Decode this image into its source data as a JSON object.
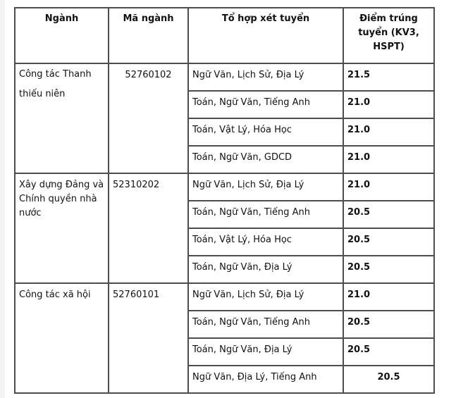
{
  "headers": [
    "Ngành",
    "Mã ngành",
    "Tổ hợp xét tuyển",
    "Điểm trúng tuyển (KV3, HSPT)"
  ],
  "groups": [
    {
      "name": "Công tác Thanh thiếu niên",
      "code": "52760102",
      "rows": [
        {
          "combo": "Ngữ Văn, Lịch Sử, Địa Lý",
          "score": "21.5"
        },
        {
          "combo": "Toán, Ngữ Văn, Tiếng Anh",
          "score": "21.0"
        },
        {
          "combo": "Toán, Vật Lý, Hóa Học",
          "score": "21.0"
        },
        {
          "combo": "Toán, Ngữ Văn, GDCD",
          "score": "21.0"
        }
      ]
    },
    {
      "name": "Xây dựng Đảng và Chính quyền nhà nước",
      "code": "52310202",
      "rows": [
        {
          "combo": "Ngữ Văn, Lịch Sử, Địa Lý",
          "score": "21.0"
        },
        {
          "combo": "Toán, Ngữ Văn, Tiếng Anh",
          "score": "20.5"
        },
        {
          "combo": "Toán, Vật Lý, Hóa Học",
          "score": "20.5"
        },
        {
          "combo": "Toán, Ngữ Văn, Địa Lý",
          "score": "20.5"
        }
      ]
    },
    {
      "name": "Công tác xã hội",
      "code": "52760101",
      "rows": [
        {
          "combo": "Ngữ Văn, Lịch Sử, Địa Lý",
          "score": "21.0"
        },
        {
          "combo": "Toán, Ngữ Văn, Tiếng Anh",
          "score": "20.5"
        },
        {
          "combo": "Toán, Ngữ Văn, Địa Lý",
          "score": "20.5"
        },
        {
          "combo": "Ngữ Văn, Địa Lý, Tiếng Anh",
          "score": "20.5"
        }
      ]
    }
  ]
}
